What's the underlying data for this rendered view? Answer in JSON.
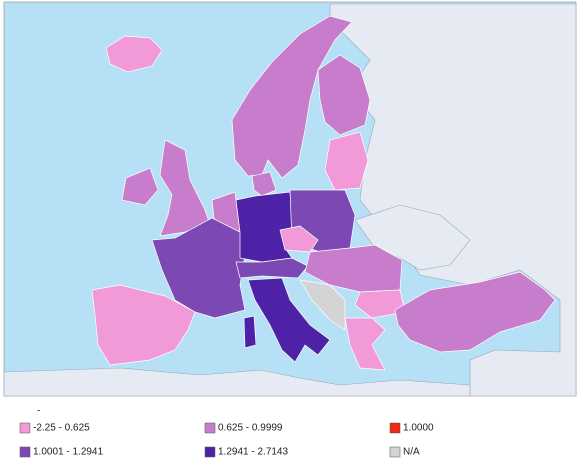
{
  "legend": {
    "title": "-",
    "items": [
      {
        "label": "-2.25 - 0.625",
        "color": "#f29ad8"
      },
      {
        "label": "0.625 - 0.9999",
        "color": "#c87ccc"
      },
      {
        "label": "1.0000",
        "color": "#f02a10"
      },
      {
        "label": "1.0001 - 1.2941",
        "color": "#7c48b4"
      },
      {
        "label": "1.2941 - 2.7143",
        "color": "#4e22a6"
      },
      {
        "label": "N/A",
        "color": "#d4d4d4"
      }
    ]
  }
}
